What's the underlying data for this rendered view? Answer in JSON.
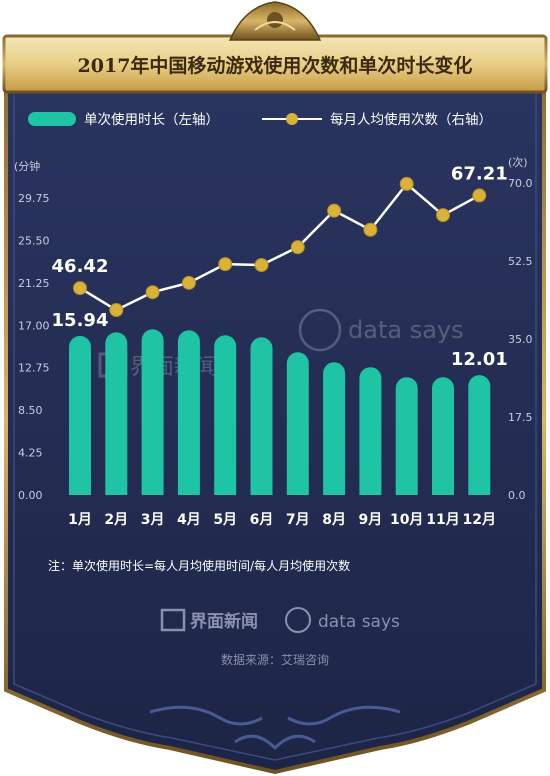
{
  "title": "2017年中国移动游戏使用次数和单次时长变化",
  "legend": {
    "bar_label": "单次使用时长（左轴）",
    "line_label": "每月人均使用次数（右轴）",
    "placement": "top"
  },
  "note": "注：单次使用时长=每人月均使用时间/每人月均使用次数",
  "source": "数据来源：艾瑞咨询",
  "brands": {
    "jiemian": "界面新闻",
    "datasays": "data says"
  },
  "colors": {
    "background": "#232c52",
    "bar": "#1ec4a4",
    "line": "#ffffff",
    "marker": "#d8b338",
    "gold": "#c9a24a",
    "text": "#ffffff",
    "axis_text": "#c8cce0"
  },
  "chart_data": {
    "type": "bar",
    "categories": [
      "1月",
      "2月",
      "3月",
      "4月",
      "5月",
      "6月",
      "7月",
      "8月",
      "9月",
      "10月",
      "11月",
      "12月"
    ],
    "left_axis": {
      "unit": "(分钟",
      "ylim": [
        0,
        29.75
      ],
      "ticks": [
        "29.75",
        "25.50",
        "21.25",
        "17.00",
        "12.75",
        "8.50",
        "4.25",
        "0.00"
      ]
    },
    "right_axis": {
      "unit": "(次)",
      "ylim": [
        0,
        70
      ],
      "ticks": [
        "70.0",
        "52.5",
        "35.0",
        "17.5",
        "0.0"
      ]
    },
    "series": [
      {
        "name": "单次使用时长（左轴）",
        "type": "bar",
        "axis": "left",
        "values": [
          15.94,
          16.3,
          16.6,
          16.5,
          16.0,
          15.8,
          14.3,
          13.3,
          12.8,
          11.8,
          11.8,
          12.01
        ]
      },
      {
        "name": "每月人均使用次数（右轴）",
        "type": "line",
        "axis": "right",
        "values": [
          46.42,
          41.5,
          45.5,
          47.6,
          51.8,
          51.6,
          55.6,
          63.8,
          59.5,
          69.8,
          62.8,
          67.21
        ]
      }
    ],
    "data_labels": [
      {
        "series": 1,
        "index": 0,
        "text": "46.42"
      },
      {
        "series": 0,
        "index": 0,
        "text": "15.94"
      },
      {
        "series": 1,
        "index": 11,
        "text": "67.21"
      },
      {
        "series": 0,
        "index": 11,
        "text": "12.01"
      }
    ],
    "grid": false
  }
}
